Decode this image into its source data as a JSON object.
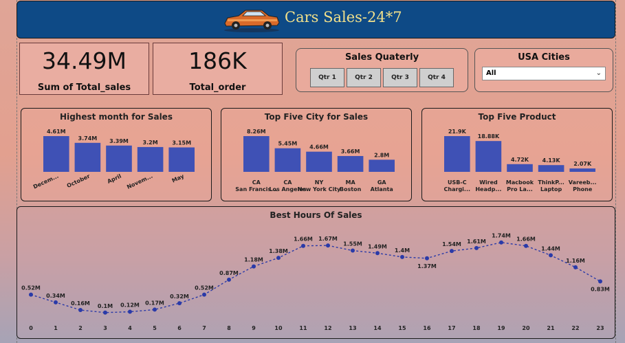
{
  "header": {
    "title": "Cars Sales-24*7"
  },
  "kpis": [
    {
      "value": "34.49M",
      "label": "Sum of Total_sales"
    },
    {
      "value": "186K",
      "label": "Total_order"
    }
  ],
  "slicers": {
    "quarterly": {
      "title": "Sales Quaterly",
      "buttons": [
        "Qtr 1",
        "Qtr 2",
        "Qtr 3",
        "Qtr 4"
      ]
    },
    "cities": {
      "title": "USA Cities",
      "selected": "All"
    }
  },
  "colors": {
    "bar": "#3f51b5",
    "line": "#2a3aa8",
    "header": "#0e4a86",
    "title": "#f2e08a"
  },
  "chart_data": [
    {
      "type": "bar",
      "title": "Highest month for Sales",
      "categories": [
        "Decem...",
        "October",
        "April",
        "Novem...",
        "May"
      ],
      "values": [
        4.61,
        3.74,
        3.39,
        3.2,
        3.15
      ],
      "labels": [
        "4.61M",
        "3.74M",
        "3.39M",
        "3.2M",
        "3.15M"
      ],
      "rotated_ticks": true
    },
    {
      "type": "bar",
      "title": "Top Five City for Sales",
      "categories": [
        "CA San Francis...",
        "CA Los Angeles",
        "NY New York City",
        "MA Boston",
        "GA Atlanta"
      ],
      "values": [
        8.26,
        5.45,
        4.66,
        3.66,
        2.8
      ],
      "labels": [
        "8.26M",
        "5.45M",
        "4.66M",
        "3.66M",
        "2.8M"
      ],
      "rotated_ticks": false
    },
    {
      "type": "bar",
      "title": "Top Five Product",
      "categories": [
        "USB-C Chargi...",
        "Wired Headp...",
        "Macbook Pro La...",
        "ThinkP... Laptop",
        "Vareeb... Phone"
      ],
      "values": [
        21.9,
        18.88,
        4.72,
        4.13,
        2.07
      ],
      "labels": [
        "21.9K",
        "18.88K",
        "4.72K",
        "4.13K",
        "2.07K"
      ],
      "rotated_ticks": false
    },
    {
      "type": "line",
      "title": "Best Hours Of Sales",
      "x": [
        0,
        1,
        2,
        3,
        4,
        5,
        6,
        7,
        8,
        9,
        10,
        11,
        12,
        13,
        14,
        15,
        16,
        17,
        18,
        19,
        20,
        21,
        22,
        23
      ],
      "values": [
        0.52,
        0.34,
        0.16,
        0.1,
        0.12,
        0.17,
        0.32,
        0.52,
        0.87,
        1.18,
        1.38,
        1.66,
        1.67,
        1.55,
        1.49,
        1.4,
        1.37,
        1.54,
        1.61,
        1.74,
        1.66,
        1.44,
        1.16,
        0.83
      ],
      "labels": [
        "0.52M",
        "0.34M",
        "0.16M",
        "0.1M",
        "0.12M",
        "0.17M",
        "0.32M",
        "0.52M",
        "0.87M",
        "1.18M",
        "1.38M",
        "1.66M",
        "1.67M",
        "1.55M",
        "1.49M",
        "1.4M",
        "1.37M",
        "1.54M",
        "1.61M",
        "1.74M",
        "1.66M",
        "1.44M",
        "1.16M",
        "0.83M"
      ],
      "style": "dashed-line-with-markers"
    }
  ]
}
